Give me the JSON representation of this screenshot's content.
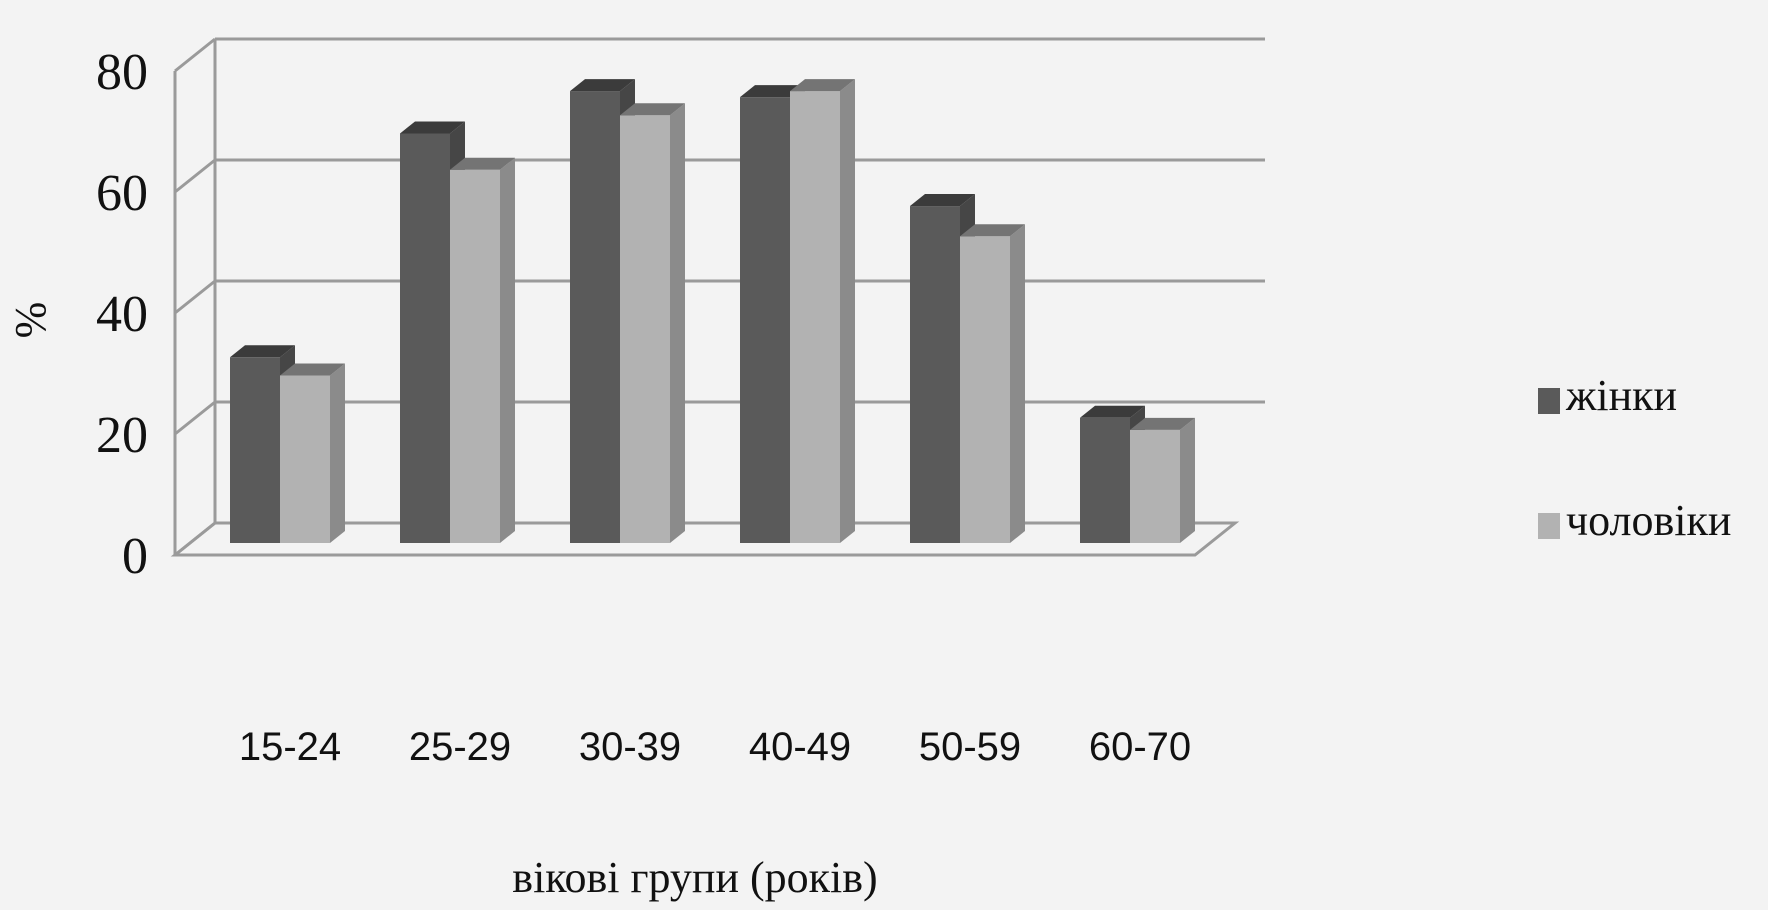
{
  "chart_data": {
    "type": "bar",
    "view": "3d-clustered-column",
    "categories": [
      "15-24",
      "25-29",
      "30-39",
      "40-49",
      "50-59",
      "60-70"
    ],
    "series": [
      {
        "name": "жінки",
        "values": [
          34,
          71,
          78,
          77,
          59,
          24
        ],
        "color": "#5a5a5a"
      },
      {
        "name": "чоловіки",
        "values": [
          31,
          65,
          74,
          78,
          54,
          22
        ],
        "color": "#b2b2b2"
      }
    ],
    "xlabel": "вікові групи (років)",
    "ylabel": "%",
    "ylim": [
      0,
      80
    ],
    "yticks": [
      0,
      20,
      40,
      60,
      80
    ],
    "grid": true,
    "legend": "right"
  }
}
